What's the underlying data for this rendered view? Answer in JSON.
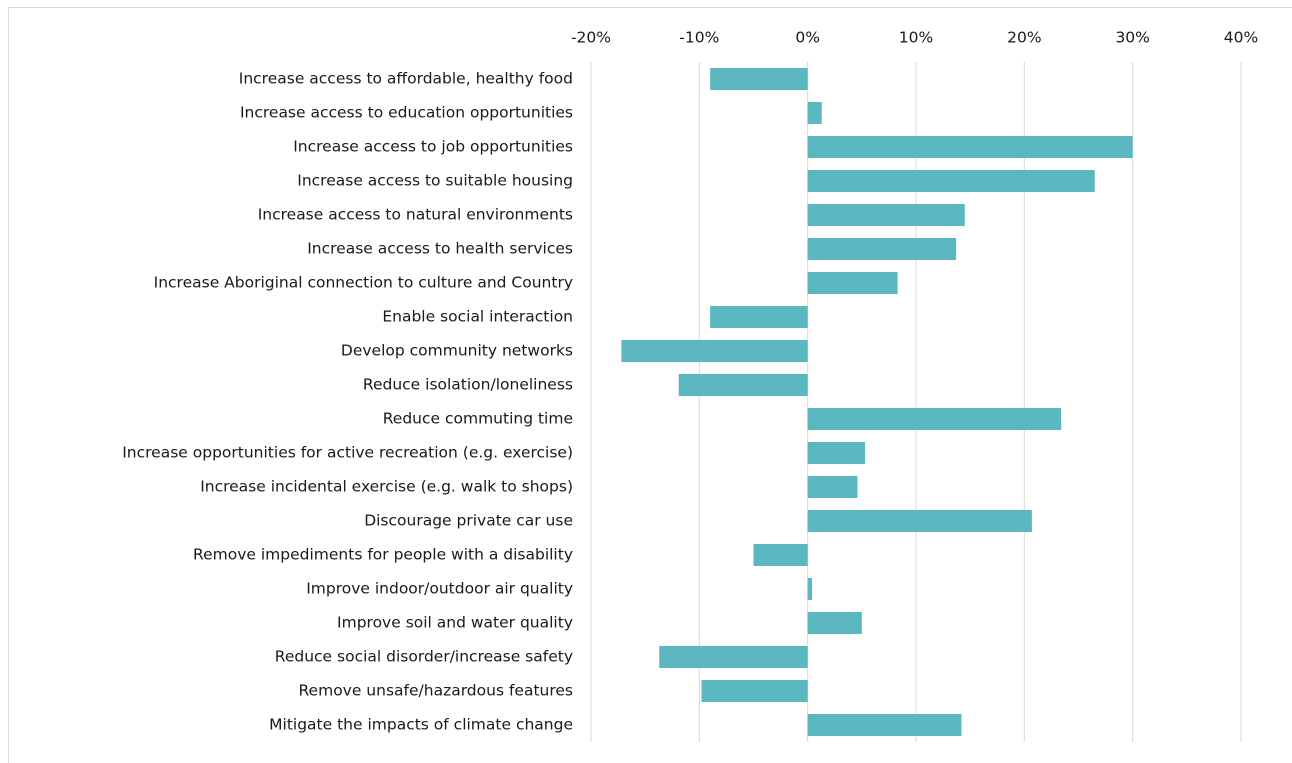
{
  "chart_data": {
    "type": "hbar",
    "categories": [
      "Increase access to affordable, healthy food",
      "Increase access to education opportunities",
      "Increase access to job opportunities",
      "Increase access to suitable housing",
      "Increase access to natural environments",
      "Increase access to health services",
      "Increase Aboriginal connection to culture and Country",
      "Enable social interaction",
      "Develop community networks",
      "Reduce isolation/loneliness",
      "Reduce commuting time",
      "Increase opportunities for active recreation (e.g. exercise)",
      "Increase incidental exercise (e.g. walk to shops)",
      "Discourage private car use",
      "Remove impediments for people with a disability",
      "Improve indoor/outdoor air quality",
      "Improve soil and water quality",
      "Reduce social disorder/increase safety",
      "Remove unsafe/hazardous features",
      "Mitigate the impacts of climate change"
    ],
    "values": [
      -9,
      1.3,
      30,
      26.5,
      14.5,
      13.7,
      8.3,
      -9,
      -17.2,
      -11.9,
      23.4,
      5.3,
      4.6,
      20.7,
      -5,
      0.4,
      5,
      -13.7,
      -9.8,
      14.2
    ],
    "color": "#5bb8c1",
    "xlim": [
      -20,
      40
    ],
    "xticks": [
      {
        "value": -20,
        "label": "-20%"
      },
      {
        "value": -10,
        "label": "-10%"
      },
      {
        "value": 0,
        "label": "0%"
      },
      {
        "value": 10,
        "label": "10%"
      },
      {
        "value": 20,
        "label": "20%"
      },
      {
        "value": 30,
        "label": "30%"
      },
      {
        "value": 40,
        "label": "40%"
      }
    ],
    "grid": true
  }
}
